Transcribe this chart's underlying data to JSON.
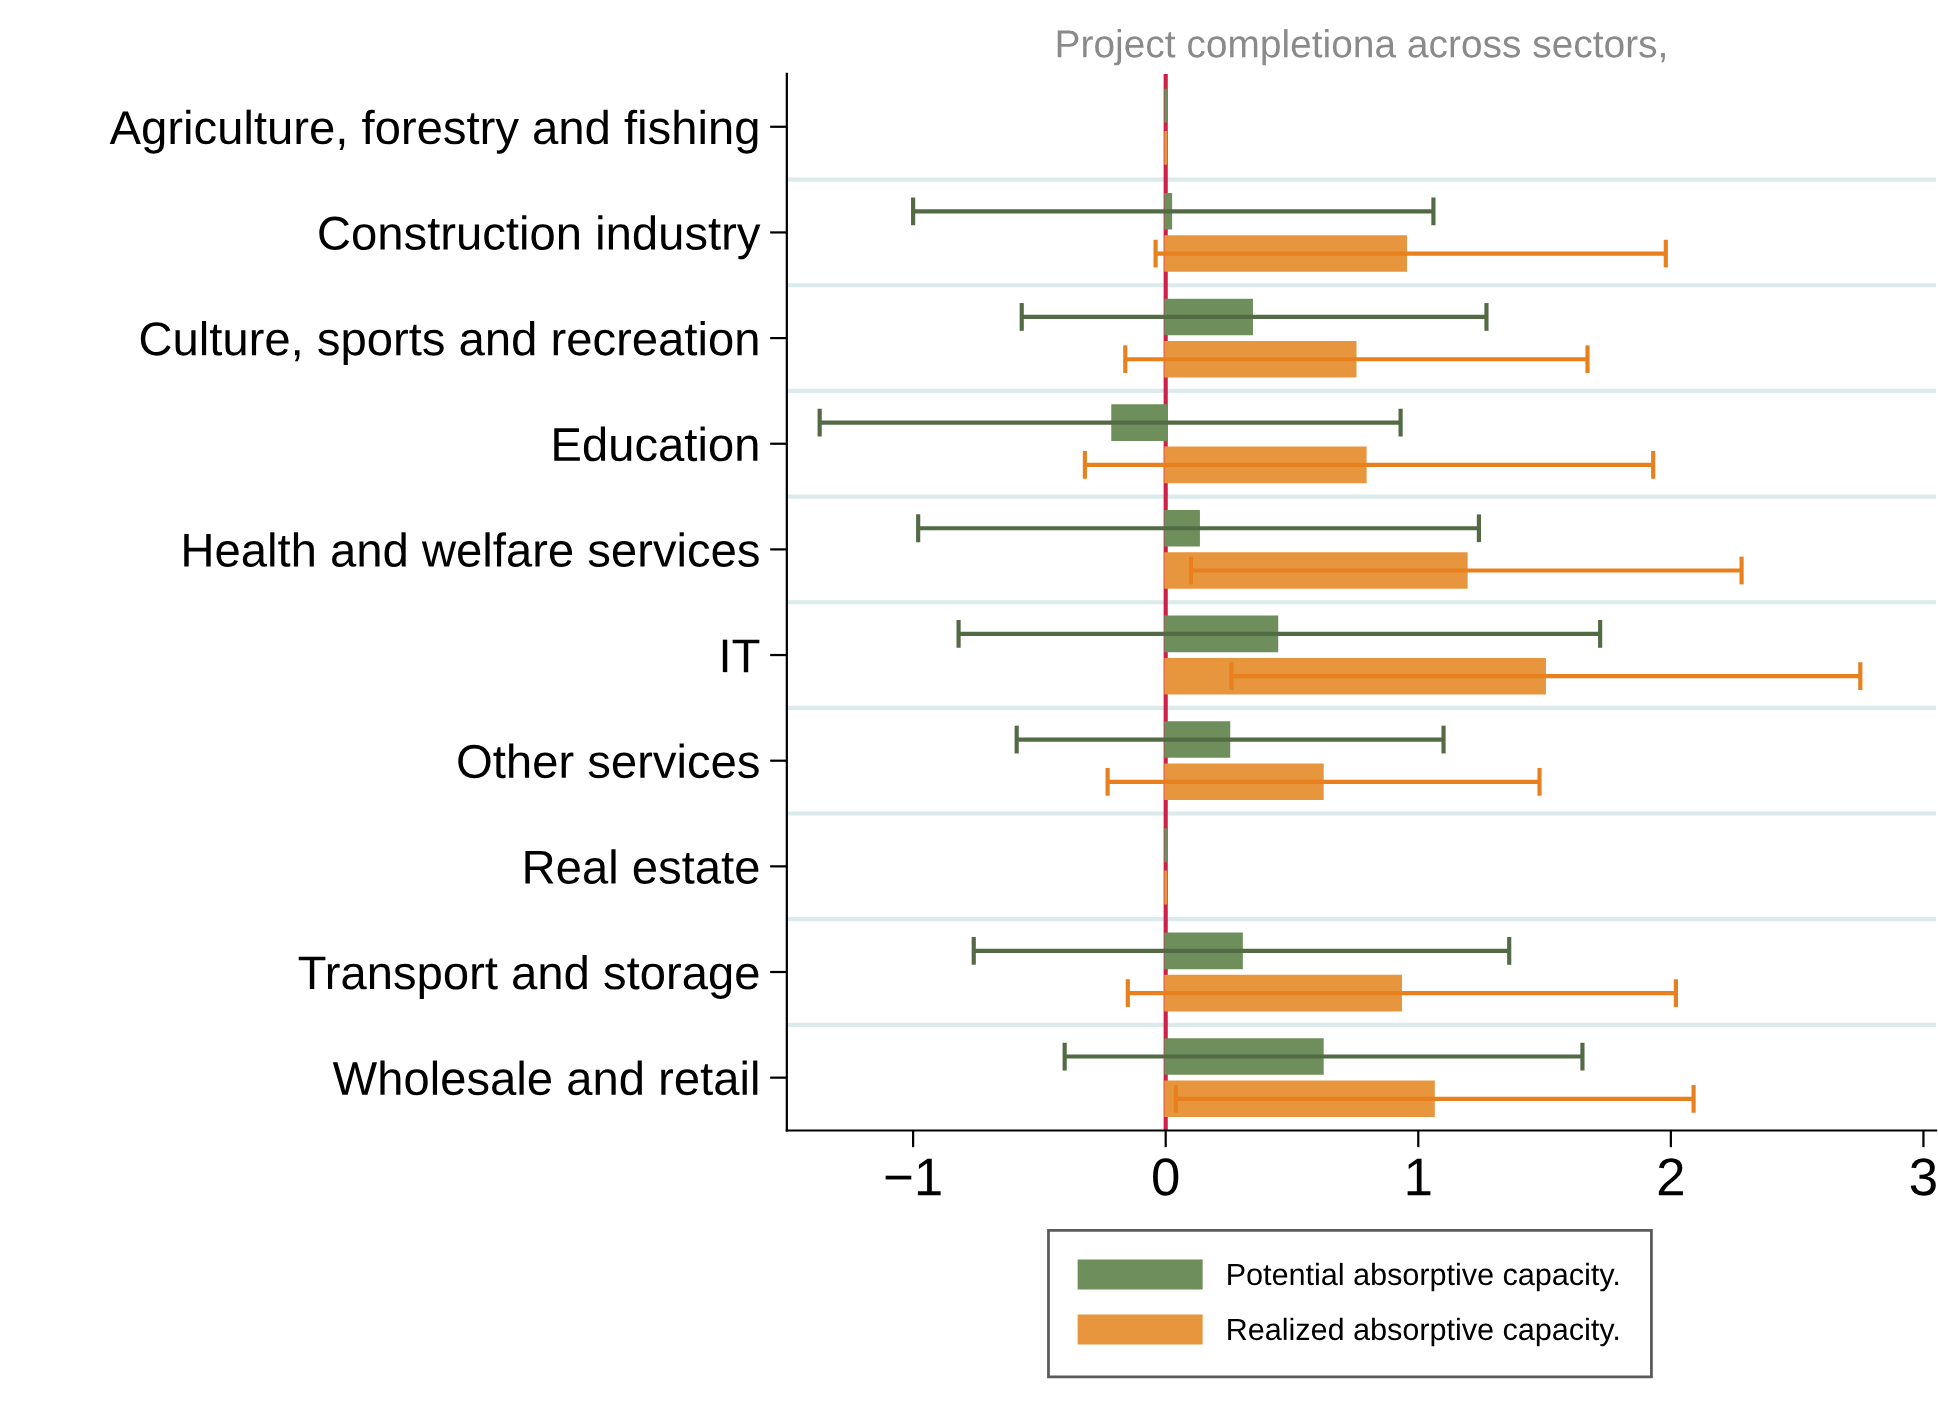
{
  "chart_data": {
    "type": "bar",
    "orientation": "horizontal",
    "title": "Project completiona across sectors,",
    "categories": [
      "Agriculture, forestry and fishing",
      "Construction industry",
      "Culture, sports and recreation",
      "Education",
      "Health and welfare services",
      "IT",
      "Other services",
      "Real estate",
      "Transport and storage",
      "Wholesale and retail"
    ],
    "series": [
      {
        "name": "Potential absorptive capacity.",
        "color": "#6e8f5c",
        "values": [
          0,
          0.02,
          0.34,
          -0.21,
          0.13,
          0.44,
          0.25,
          0,
          0.3,
          0.62
        ],
        "errors": [
          null,
          [
            -1.0,
            1.06
          ],
          [
            -0.57,
            1.27
          ],
          [
            -1.37,
            0.93
          ],
          [
            -0.98,
            1.24
          ],
          [
            -0.82,
            1.72
          ],
          [
            -0.59,
            1.1
          ],
          null,
          [
            -0.76,
            1.36
          ],
          [
            -0.4,
            1.65
          ]
        ]
      },
      {
        "name": "Realized absorptive capacity.",
        "color": "#e8963e",
        "values": [
          0,
          0.95,
          0.75,
          0.79,
          1.19,
          1.5,
          0.62,
          0,
          0.93,
          1.06
        ],
        "errors": [
          null,
          [
            -0.04,
            1.98
          ],
          [
            -0.16,
            1.67
          ],
          [
            -0.32,
            1.93
          ],
          [
            0.1,
            2.28
          ],
          [
            0.26,
            2.75
          ],
          [
            -0.23,
            1.48
          ],
          null,
          [
            -0.15,
            2.02
          ],
          [
            0.04,
            2.09
          ]
        ]
      }
    ],
    "xlim": [
      -1.5,
      3.05
    ],
    "xticks": [
      {
        "value": -1,
        "label": "−1"
      },
      0,
      1,
      2,
      3
    ],
    "ref_lines": [
      {
        "axis": "x",
        "value": 0,
        "color": "#d0204a"
      }
    ],
    "grid": "y",
    "legend": "bottom"
  }
}
